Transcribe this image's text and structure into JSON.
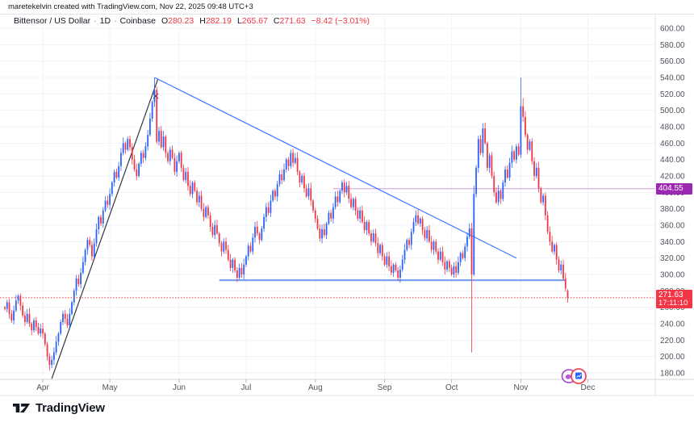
{
  "attribution": "maretekelvin created with TradingView.com, Nov 22, 2025 09:48 UTC+3",
  "brand": "TradingView",
  "legend": {
    "symbol": "Bittensor / US Dollar",
    "separator": "·",
    "interval": "1D",
    "exchange": "Coinbase",
    "ohlc": {
      "o_label": "O",
      "o": "280.23",
      "h_label": "H",
      "h": "282.19",
      "l_label": "L",
      "l": "265.67",
      "c_label": "C",
      "c": "271.63",
      "change": "−8.42 (−3.01%)"
    }
  },
  "badges": {
    "level_price": "404.55",
    "last_price": "271.63",
    "countdown": "17:11:10"
  },
  "colors": {
    "up": "#2962ff",
    "down": "#f23645",
    "grid": "#f0f3fa",
    "axis_text": "#50535e",
    "border": "#e0e3eb",
    "axis_line": "#d1d4dc",
    "tick": "#b2b5be",
    "purple_level": "#9c27b0",
    "support": "#5b8def",
    "trend_black": "#1e222d",
    "trend_blue": "#2962ff",
    "last_price_line": "#f23645",
    "sticker_purple": "#b13bd6",
    "sticker_red": "#ef4655",
    "sticker_blue": "#2962ff"
  },
  "chart_data": {
    "type": "candlestick",
    "title": "Bittensor / US Dollar · 1D · Coinbase",
    "ylim": [
      180,
      600
    ],
    "ytick_step": 20,
    "grid": true,
    "x_months": [
      {
        "label": "Apr",
        "day": 17
      },
      {
        "label": "May",
        "day": 47
      },
      {
        "label": "Jun",
        "day": 78
      },
      {
        "label": "Jul",
        "day": 108
      },
      {
        "label": "Aug",
        "day": 139
      },
      {
        "label": "Sep",
        "day": 170
      },
      {
        "label": "Oct",
        "day": 200
      },
      {
        "label": "Nov",
        "day": 231
      },
      {
        "label": "Dec",
        "day": 261
      }
    ],
    "first_open": 260,
    "closes": [
      258,
      266,
      252,
      244,
      256,
      268,
      274,
      262,
      250,
      242,
      252,
      240,
      232,
      244,
      236,
      228,
      234,
      228,
      215,
      200,
      190,
      196,
      205,
      218,
      228,
      242,
      252,
      246,
      238,
      252,
      266,
      280,
      295,
      288,
      302,
      315,
      330,
      342,
      336,
      322,
      338,
      355,
      370,
      362,
      378,
      390,
      385,
      398,
      412,
      425,
      418,
      432,
      448,
      460,
      452,
      465,
      455,
      440,
      428,
      420,
      435,
      448,
      442,
      456,
      470,
      490,
      510,
      525,
      462,
      475,
      455,
      468,
      448,
      438,
      452,
      442,
      425,
      438,
      448,
      430,
      415,
      425,
      408,
      398,
      412,
      402,
      388,
      396,
      380,
      370,
      382,
      372,
      358,
      348,
      360,
      350,
      338,
      328,
      340,
      330,
      318,
      308,
      318,
      305,
      296,
      308,
      300,
      312,
      322,
      335,
      328,
      345,
      358,
      350,
      342,
      356,
      370,
      382,
      375,
      390,
      402,
      395,
      410,
      422,
      415,
      428,
      440,
      432,
      448,
      436,
      442,
      425,
      412,
      420,
      405,
      395,
      405,
      390,
      378,
      368,
      356,
      344,
      355,
      348,
      362,
      375,
      368,
      382,
      395,
      388,
      402,
      412,
      400,
      408,
      392,
      382,
      392,
      378,
      368,
      378,
      364,
      354,
      364,
      350,
      340,
      350,
      338,
      326,
      336,
      322,
      312,
      322,
      310,
      302,
      312,
      305,
      296,
      306,
      318,
      330,
      342,
      336,
      352,
      364,
      372,
      362,
      368,
      354,
      344,
      354,
      340,
      330,
      340,
      328,
      318,
      328,
      315,
      306,
      316,
      308,
      300,
      310,
      302,
      315,
      326,
      320,
      334,
      346,
      356,
      300,
      398,
      430,
      465,
      448,
      478,
      460,
      430,
      445,
      420,
      400,
      388,
      402,
      392,
      412,
      428,
      418,
      436,
      450,
      440,
      456,
      446,
      505,
      492,
      470,
      452,
      462,
      438,
      420,
      430,
      405,
      388,
      396,
      372,
      352,
      340,
      328,
      336,
      318,
      305,
      312,
      295,
      283,
      271.63
    ],
    "overrides": {
      "20": {
        "low": 183
      },
      "67": {
        "high": 540
      },
      "209": {
        "low": 205
      },
      "210": {
        "high": 408
      },
      "231": {
        "high": 540
      },
      "232": {
        "high": 515
      },
      "252": {
        "open": 280.23,
        "high": 282.19,
        "low": 265.67
      }
    },
    "last_candle": {
      "open": 280.23,
      "high": 282.19,
      "low": 265.67,
      "close": 271.63
    },
    "drawings": {
      "trendlines": [
        {
          "name": "uptrend-line",
          "color": "#1e222d",
          "from": {
            "day": 21,
            "price": 173
          },
          "to": {
            "day": 68.5,
            "price": 538
          }
        },
        {
          "name": "descending-trendline",
          "color": "#2962ff",
          "from": {
            "day": 67,
            "price": 540
          },
          "to": {
            "day": 229,
            "price": 320
          }
        }
      ],
      "support_line": {
        "name": "horizontal-support",
        "color": "#5b8def",
        "price": 293,
        "from_day": 96,
        "to_day": 251
      },
      "price_level_line": {
        "value": 404.55,
        "color": "#9c27b0",
        "from_day": 147
      },
      "last_price_line": {
        "value": 271.63,
        "color": "#f23645",
        "style": "dotted"
      }
    },
    "up_color": "#2962ff",
    "down_color": "#f23645"
  }
}
